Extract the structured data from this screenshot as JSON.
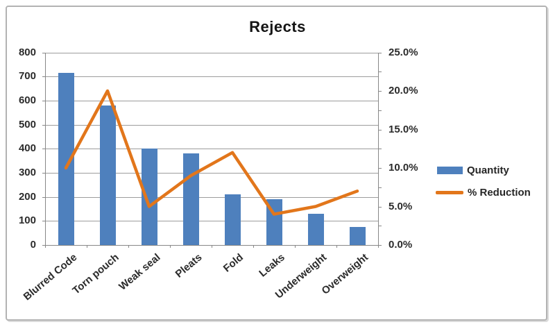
{
  "title": "Rejects",
  "chart_data": {
    "type": "combo-bar-line",
    "title": "Rejects",
    "categories": [
      "Blurred Code",
      "Torn pouch",
      "Weak seal",
      "Pleats",
      "Fold",
      "Leaks",
      "Underweight",
      "Overweight"
    ],
    "series": [
      {
        "name": "Quantity",
        "type": "bar",
        "axis": "left",
        "values": [
          715,
          580,
          400,
          380,
          210,
          190,
          130,
          75
        ]
      },
      {
        "name": "% Reduction",
        "type": "line",
        "axis": "right",
        "values_percent": [
          10,
          20,
          5,
          9,
          12,
          4,
          5,
          7
        ]
      }
    ],
    "left_axis": {
      "min": 0,
      "max": 800,
      "step": 100,
      "tick_labels": [
        "0",
        "100",
        "200",
        "300",
        "400",
        "500",
        "600",
        "700",
        "800"
      ]
    },
    "right_axis": {
      "min": 0,
      "max": 25,
      "label_step": 5,
      "minor_tick_step": 2.5,
      "tick_labels": [
        "0.0%",
        "5.0%",
        "10.0%",
        "15.0%",
        "20.0%",
        "25.0%"
      ]
    },
    "legend": {
      "position": "right",
      "entries": [
        "Quantity",
        "% Reduction"
      ]
    },
    "grid": "horizontal",
    "colors": {
      "bar": "#4E80BD",
      "line": "#E2761B",
      "gridline": "#9c9c9c",
      "axis": "#878787"
    }
  }
}
